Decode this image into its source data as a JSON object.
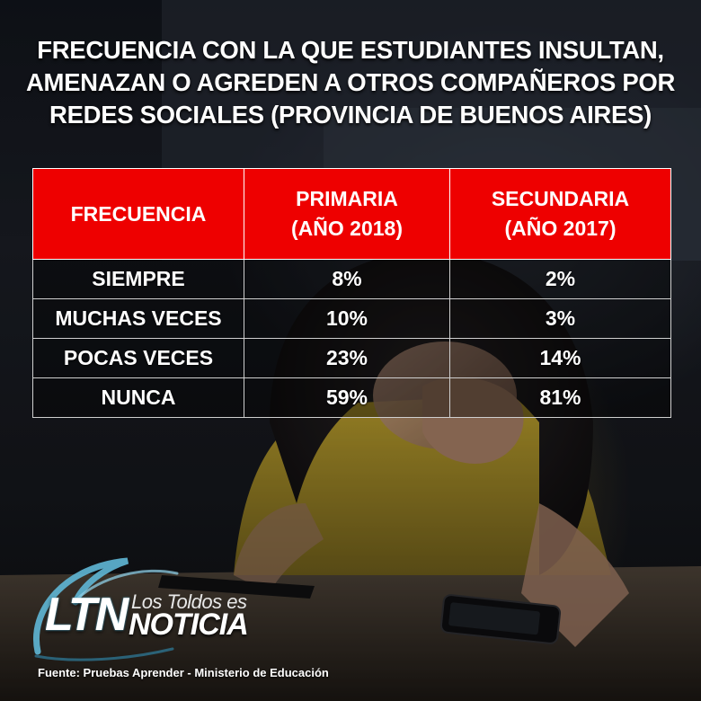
{
  "colors": {
    "header_bg": "#ee0000",
    "text": "#ffffff",
    "background": "#12141a",
    "logo_accent": "#5fb7d6"
  },
  "title_lines": [
    "FRECUENCIA CON LA QUE ESTUDIANTES INSULTAN,",
    "AMENAZAN  O AGREDEN A OTROS COMPAÑEROS POR",
    "REDES SOCIALES (PROVINCIA DE BUENOS AIRES)"
  ],
  "chart_data": {
    "type": "table",
    "title": "FRECUENCIA CON LA QUE ESTUDIANTES INSULTAN, AMENAZAN  O AGREDEN A OTROS COMPAÑEROS POR REDES SOCIALES (PROVINCIA DE BUENOS AIRES)",
    "columns": [
      {
        "lines": [
          "FRECUENCIA"
        ]
      },
      {
        "lines": [
          "PRIMARIA",
          "(AÑO 2018)"
        ]
      },
      {
        "lines": [
          "SECUNDARIA",
          "(AÑO 2017)"
        ]
      }
    ],
    "rows": [
      [
        "SIEMPRE",
        "8%",
        "2%"
      ],
      [
        "MUCHAS VECES",
        "10%",
        "3%"
      ],
      [
        "POCAS VECES",
        "23%",
        "14%"
      ],
      [
        "NUNCA",
        "59%",
        "81%"
      ]
    ],
    "series": [
      {
        "name": "PRIMARIA (AÑO 2018)",
        "values": [
          8,
          10,
          23,
          59
        ]
      },
      {
        "name": "SECUNDARIA (AÑO 2017)",
        "values": [
          2,
          3,
          14,
          81
        ]
      }
    ],
    "categories": [
      "SIEMPRE",
      "MUCHAS VECES",
      "POCAS VECES",
      "NUNCA"
    ]
  },
  "logo": {
    "ltn": "LTN",
    "los_toldos": "Los Toldos es",
    "noticia": "NOTICIA"
  },
  "source": "Fuente: Pruebas Aprender - Ministerio de Educación",
  "background_icon": "photo-of-distressed-student-with-phone"
}
